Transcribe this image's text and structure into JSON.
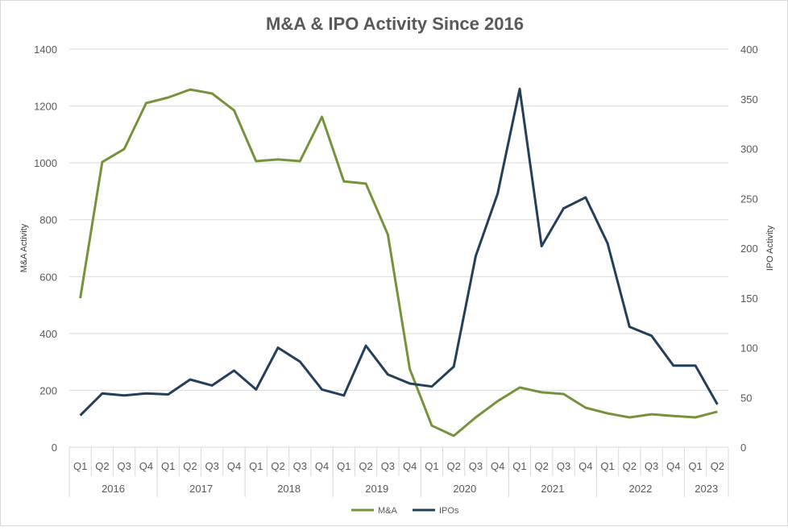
{
  "chart_data": {
    "type": "line",
    "title": "M&A & IPO Activity Since 2016",
    "ylabel": "M&A Activity",
    "y2label": "IPO Activity",
    "ylim": [
      0,
      1400
    ],
    "y2lim": [
      0,
      400
    ],
    "yticks": [
      0,
      200,
      400,
      600,
      800,
      1000,
      1200,
      1400
    ],
    "y2ticks": [
      0,
      50,
      100,
      150,
      200,
      250,
      300,
      350,
      400
    ],
    "grid": true,
    "legend": "bottom",
    "years": [
      {
        "label": "2016",
        "count": 4
      },
      {
        "label": "2017",
        "count": 4
      },
      {
        "label": "2018",
        "count": 4
      },
      {
        "label": "2019",
        "count": 4
      },
      {
        "label": "2020",
        "count": 4
      },
      {
        "label": "2021",
        "count": 4
      },
      {
        "label": "2022",
        "count": 4
      },
      {
        "label": "2023",
        "count": 2
      }
    ],
    "categories": [
      "Q1",
      "Q2",
      "Q3",
      "Q4",
      "Q1",
      "Q2",
      "Q3",
      "Q4",
      "Q1",
      "Q2",
      "Q3",
      "Q4",
      "Q1",
      "Q2",
      "Q3",
      "Q4",
      "Q1",
      "Q2",
      "Q3",
      "Q4",
      "Q1",
      "Q2",
      "Q3",
      "Q4",
      "Q1",
      "Q2",
      "Q3",
      "Q4",
      "Q1",
      "Q2"
    ],
    "series": [
      {
        "name": "M&A",
        "axis": "left",
        "color": "#76933c",
        "values": [
          524,
          1003,
          1049,
          1210,
          1230,
          1258,
          1244,
          1185,
          1006,
          1012,
          1006,
          1162,
          935,
          927,
          748,
          275,
          76,
          40,
          105,
          162,
          210,
          193,
          187,
          139,
          119,
          105,
          116,
          110,
          105,
          125
        ]
      },
      {
        "name": "IPOs",
        "axis": "right",
        "color": "#243f5a",
        "values": [
          32,
          54,
          52,
          54,
          53,
          68,
          62,
          77,
          58,
          100,
          86,
          58,
          52,
          102,
          73,
          64,
          61,
          81,
          192,
          255,
          360,
          202,
          240,
          251,
          205,
          121,
          112,
          82,
          82,
          43
        ]
      }
    ]
  }
}
